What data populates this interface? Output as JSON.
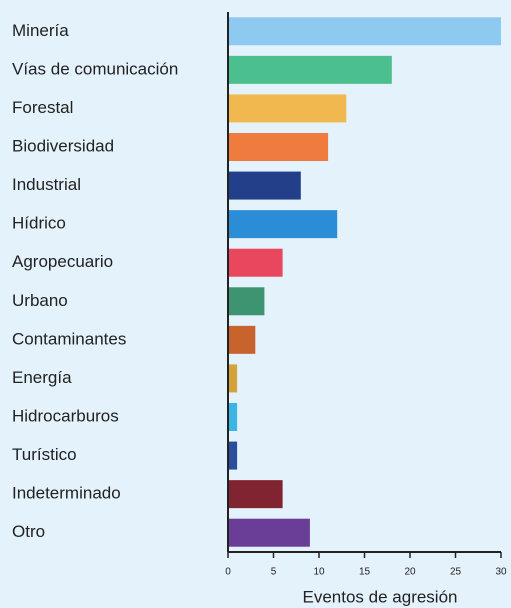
{
  "chart_data": {
    "type": "bar",
    "orientation": "horizontal",
    "categories": [
      "Minería",
      "Vías de comunicación",
      "Forestal",
      "Biodiversidad",
      "Industrial",
      "Hídrico",
      "Agropecuario",
      "Urbano",
      "Contaminantes",
      "Energía",
      "Hidrocarburos",
      "Turístico",
      "Indeterminado",
      "Otro"
    ],
    "values": [
      30,
      18,
      13,
      11,
      8,
      12,
      6,
      4,
      3,
      1,
      1,
      1,
      6,
      9
    ],
    "colors": [
      "#8ec9f0",
      "#4cbf8e",
      "#f0b84e",
      "#ef7b3f",
      "#233f8a",
      "#2b8dd6",
      "#e8475e",
      "#3d9470",
      "#c8632e",
      "#d4a23a",
      "#3cb4e6",
      "#2c4e9a",
      "#7f2430",
      "#6a3d96"
    ],
    "xlabel": "Eventos de agresión",
    "xlim": [
      0,
      30
    ],
    "xticks": [
      0,
      5,
      10,
      15,
      20,
      25,
      30
    ]
  }
}
